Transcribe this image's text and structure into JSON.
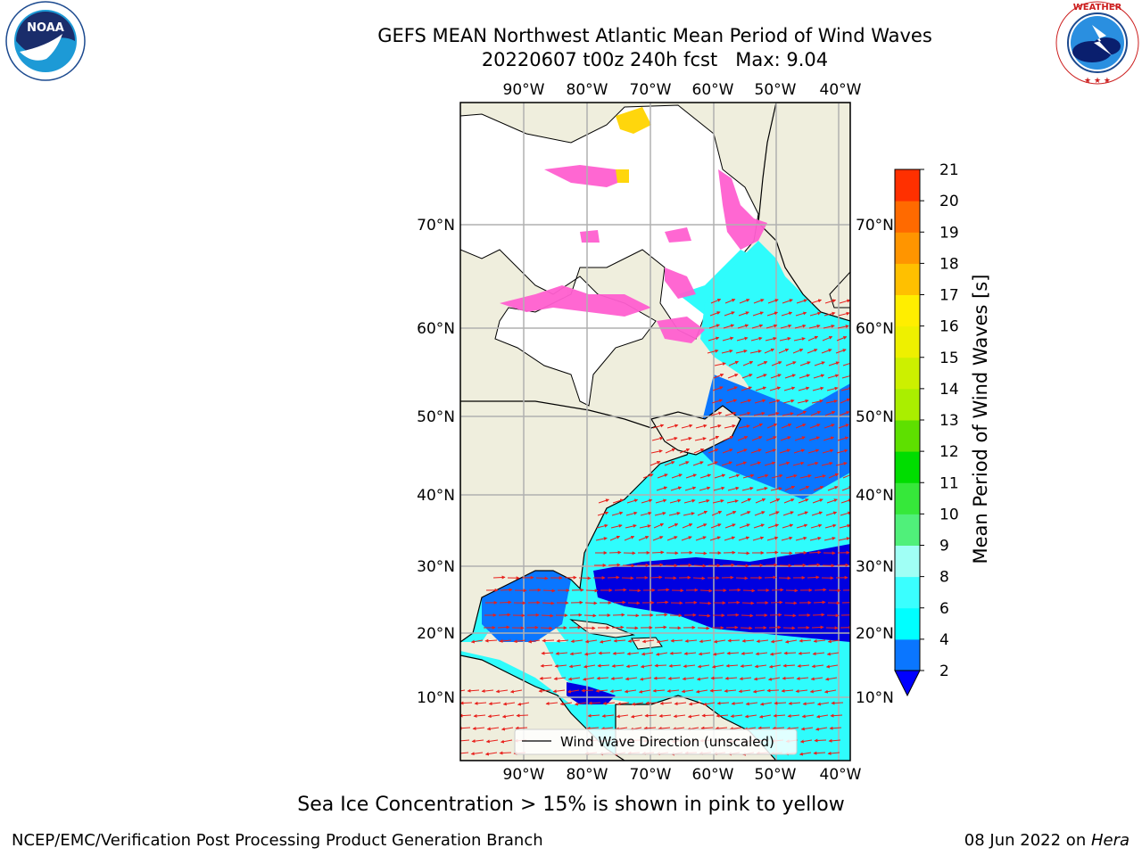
{
  "header": {
    "title": "GEFS MEAN Northwest Atlantic Mean Period of Wind Waves",
    "subtitle": "20220607 t00z 240h fcst   Max: 9.04"
  },
  "logos": {
    "left": {
      "icon": "noaa-logo-icon",
      "text": "NOAA",
      "ring_text": "NATIONAL OCEANIC AND ATMOSPHERIC ADMINISTRATION · U.S. DEPARTMENT OF COMMERCE"
    },
    "right": {
      "icon": "nws-logo-icon",
      "ring_text": "NATIONAL WEATHER SERVICE"
    }
  },
  "map": {
    "lon_labels_top": [
      "90°W",
      "80°W",
      "70°W",
      "60°W",
      "50°W",
      "40°W"
    ],
    "lon_labels_bottom": [
      "90°W",
      "80°W",
      "70°W",
      "60°W",
      "50°W",
      "40°W"
    ],
    "lat_labels_left": [
      "70°N",
      "60°N",
      "50°N",
      "40°N",
      "30°N",
      "20°N",
      "10°N"
    ],
    "lat_labels_right": [
      "70°N",
      "60°N",
      "50°N",
      "40°N",
      "30°N",
      "20°N",
      "10°N"
    ],
    "legend_label": "Wind Wave Direction (unscaled)",
    "colors": {
      "land": "#efeedd",
      "ice": "#ffffff",
      "sea_ice_pink": "#ff5fd0",
      "sea_ice_yellow": "#ffd400",
      "arrow": "#e8201b",
      "grid": "#b0b0b0"
    }
  },
  "colorbar": {
    "title": "Mean Period of Wind Waves [s]",
    "tick_labels": [
      "2",
      "4",
      "6",
      "8",
      "9",
      "10",
      "11",
      "12",
      "13",
      "14",
      "15",
      "16",
      "17",
      "18",
      "19",
      "20",
      "21"
    ],
    "colors": [
      "#0a76ff",
      "#00ffff",
      "#3affff",
      "#a0fff5",
      "#50f07a",
      "#36e83a",
      "#00dd00",
      "#5ee000",
      "#aaee00",
      "#ccf000",
      "#eef000",
      "#ffee00",
      "#ffc000",
      "#ff9500",
      "#ff6a00",
      "#ff3000",
      "#ff0000"
    ],
    "extend_color": "#0000ff"
  },
  "note": "Sea Ice Concentration > 15% is shown in pink to yellow",
  "footer": {
    "left": "NCEP/EMC/Verification Post Processing Product Generation Branch",
    "right_prefix": "08 Jun 2022 on ",
    "right_italic": "Hera"
  }
}
